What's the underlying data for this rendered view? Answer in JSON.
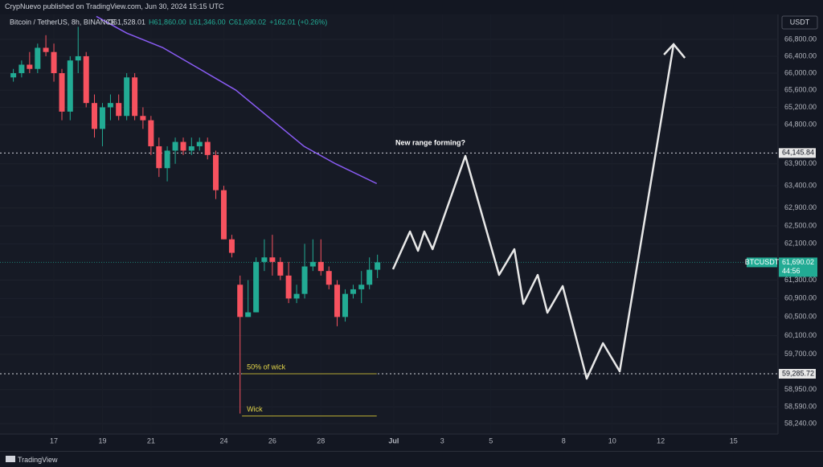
{
  "header": "CrypNuevo published on TradingView.com, Jun 30, 2024 15:15 UTC",
  "footer": "TradingView",
  "chart_data": {
    "type": "candlestick",
    "title": "Bitcoin / TetherUS, 8h, BINANCE",
    "ohlc_legend": [
      "O61,528.01",
      "H61,860.00",
      "L61,346.00",
      "C61,690.02",
      "+162.01 (+0.26%)"
    ],
    "currency": "USDT",
    "log_scale": true,
    "grid": true,
    "up_color": "#22ab94",
    "down_color": "#f7525f",
    "xlim": [
      14.78,
      46.83
    ],
    "ylim": [
      58024,
      67397
    ],
    "xticks": [
      17,
      19,
      21,
      24,
      26,
      28,
      {
        "value": 31,
        "label": "Jul"
      },
      {
        "value": 33,
        "label": "3"
      },
      {
        "value": 35,
        "label": "5"
      },
      {
        "value": 38,
        "label": "8"
      },
      {
        "value": 40,
        "label": "10"
      },
      {
        "value": 42,
        "label": "12"
      },
      {
        "value": 45,
        "label": "15"
      }
    ],
    "yticks": [
      {
        "value": 66800,
        "label": "66,800.00"
      },
      {
        "value": 66400,
        "label": "66,400.00"
      },
      {
        "value": 66000,
        "label": "66,000.00"
      },
      {
        "value": 65600,
        "label": "65,600.00"
      },
      {
        "value": 65200,
        "label": "65,200.00"
      },
      {
        "value": 64800,
        "label": "64,800.00"
      },
      {
        "value": 63900,
        "label": "63,900.00"
      },
      {
        "value": 63400,
        "label": "63,400.00"
      },
      {
        "value": 62900,
        "label": "62,900.00"
      },
      {
        "value": 62500,
        "label": "62,500.00"
      },
      {
        "value": 62100,
        "label": "62,100.00"
      },
      {
        "value": 61300,
        "label": "61,300.00"
      },
      {
        "value": 60900,
        "label": "60,900.00"
      },
      {
        "value": 60500,
        "label": "60,500.00"
      },
      {
        "value": 60100,
        "label": "60,100.00"
      },
      {
        "value": 59700,
        "label": "59,700.00"
      },
      {
        "value": 58950,
        "label": "58,950.00"
      },
      {
        "value": 58590,
        "label": "58,590.00"
      },
      {
        "value": 58240,
        "label": "58,240.00"
      }
    ],
    "x": [
      15.33,
      15.67,
      16.0,
      16.33,
      16.67,
      17.0,
      17.33,
      17.67,
      18.0,
      18.33,
      18.67,
      19.0,
      19.33,
      19.67,
      20.0,
      20.33,
      20.67,
      21.0,
      21.33,
      21.67,
      22.0,
      22.33,
      22.67,
      23.0,
      23.33,
      23.67,
      24.0,
      24.33,
      24.67,
      25.0,
      25.33,
      25.67,
      26.0,
      26.33,
      26.67,
      27.0,
      27.33,
      27.67,
      28.0,
      28.33,
      28.67,
      29.0,
      29.33,
      29.67,
      30.0,
      30.33
    ],
    "open": [
      65900,
      66000,
      66200,
      66100,
      66600,
      66500,
      66000,
      65100,
      66300,
      66400,
      65300,
      64700,
      65200,
      65300,
      65000,
      65900,
      65000,
      64900,
      64300,
      63800,
      64200,
      64400,
      64200,
      64300,
      64400,
      64100,
      63300,
      62200,
      61200,
      60500,
      60600,
      61700,
      61800,
      61700,
      61400,
      60900,
      61000,
      61600,
      61700,
      61500,
      61200,
      60500,
      61000,
      61100,
      61200,
      61528.01
    ],
    "high": [
      66100,
      66300,
      66500,
      66700,
      66900,
      66700,
      66100,
      66400,
      67100,
      66500,
      65500,
      65300,
      65500,
      65500,
      66000,
      66000,
      65200,
      65000,
      64500,
      64300,
      64500,
      64500,
      64500,
      64500,
      64500,
      64200,
      63400,
      62300,
      61400,
      61300,
      61800,
      62200,
      62300,
      61800,
      61700,
      61200,
      62100,
      62200,
      62200,
      61600,
      61300,
      61100,
      61200,
      61500,
      61800,
      61860
    ],
    "low": [
      65800,
      65900,
      66000,
      66000,
      66400,
      65800,
      64900,
      64900,
      66000,
      65200,
      64500,
      64300,
      64900,
      64900,
      64900,
      64900,
      64700,
      64100,
      63600,
      63500,
      63900,
      64100,
      64100,
      64200,
      64000,
      63100,
      62200,
      61800,
      58450,
      60500,
      60600,
      61500,
      61400,
      61300,
      60800,
      60800,
      60900,
      61500,
      61400,
      61100,
      60300,
      60400,
      60900,
      60800,
      61100,
      61346
    ],
    "close": [
      66000,
      66200,
      66100,
      66600,
      66500,
      66000,
      65100,
      66300,
      66400,
      65300,
      64700,
      65200,
      65300,
      65000,
      65900,
      65000,
      64900,
      64300,
      63800,
      64200,
      64400,
      64200,
      64300,
      64400,
      64100,
      63300,
      62200,
      61900,
      60500,
      60600,
      61700,
      61800,
      61700,
      61400,
      60900,
      61000,
      61600,
      61700,
      61500,
      61200,
      60500,
      61000,
      61100,
      61200,
      61528.01,
      61690.02
    ],
    "ma": {
      "color": "#8a5cf5",
      "x": [
        18.75,
        20.0,
        21.5,
        23.0,
        24.5,
        26.0,
        27.3,
        28.6,
        30.3
      ],
      "values": [
        67350,
        66950,
        66600,
        66100,
        65600,
        64900,
        64300,
        63900,
        63450
      ]
    },
    "projection": {
      "color": "#e8e8e8",
      "label": "New range forming?",
      "x": [
        30.97,
        31.67,
        32.0,
        32.26,
        32.6,
        33.95,
        35.34,
        35.97,
        36.34,
        36.93,
        37.33,
        37.96,
        38.95,
        39.62,
        40.31,
        42.53
      ],
      "values": [
        61539,
        62373,
        61946,
        62373,
        61981,
        64079,
        61415,
        61981,
        60784,
        61415,
        60593,
        61169,
        59183,
        59936,
        59337,
        66685
      ]
    },
    "levels": [
      {
        "value": 64145.84,
        "label": "64,145.84"
      },
      {
        "value": 59285.72,
        "label": "59,285.72"
      }
    ],
    "last_price": {
      "value": 61690.02,
      "label": "61,690.02",
      "symbol": "BTCUSDT",
      "countdown": "44:56"
    },
    "annotations": [
      {
        "text": "50% of wick",
        "value": 59285.72,
        "x": [
          24.75,
          30.3
        ]
      },
      {
        "text": "Wick",
        "value": 58400,
        "x": [
          24.75,
          30.3
        ]
      }
    ]
  }
}
